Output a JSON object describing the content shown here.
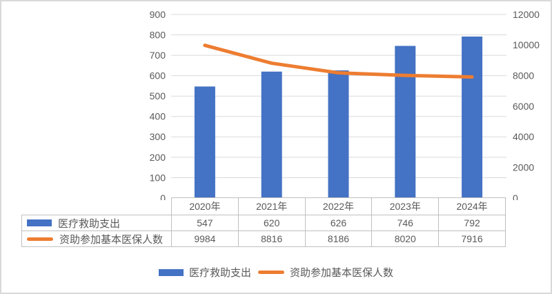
{
  "chart_data": {
    "type": "combo-bar-line",
    "categories": [
      "2020年",
      "2021年",
      "2022年",
      "2023年",
      "2024年"
    ],
    "series": [
      {
        "name": "医疗救助支出",
        "type": "bar",
        "axis": "left",
        "color": "#4472C4",
        "values": [
          547,
          620,
          626,
          746,
          792
        ]
      },
      {
        "name": "资助参加基本医保人数",
        "type": "line",
        "axis": "right",
        "color": "#ED7D31",
        "values": [
          9984,
          8816,
          8186,
          8020,
          7916
        ]
      }
    ],
    "left_axis": {
      "min": 0,
      "max": 900,
      "step": 100,
      "ticks": [
        "0",
        "100",
        "200",
        "300",
        "400",
        "500",
        "600",
        "700",
        "800",
        "900"
      ]
    },
    "right_axis": {
      "min": 0,
      "max": 12000,
      "step": 2000,
      "ticks": [
        "0",
        "2000",
        "4000",
        "6000",
        "8000",
        "10000",
        "12000"
      ]
    },
    "grid": true,
    "legend_position": "bottom",
    "data_table_shown": true
  },
  "legend": {
    "items": [
      {
        "label": "医疗救助支出",
        "swatch": "bar",
        "color": "#4472C4"
      },
      {
        "label": "资助参加基本医保人数",
        "swatch": "line",
        "color": "#ED7D31"
      }
    ]
  },
  "colors": {
    "bar": "#4472C4",
    "line": "#ED7D31",
    "gridline": "#D9D9D9",
    "table_border": "#BFBFBF",
    "text": "#595959",
    "frame": "#D9D9D9",
    "background": "#FFFFFF"
  }
}
